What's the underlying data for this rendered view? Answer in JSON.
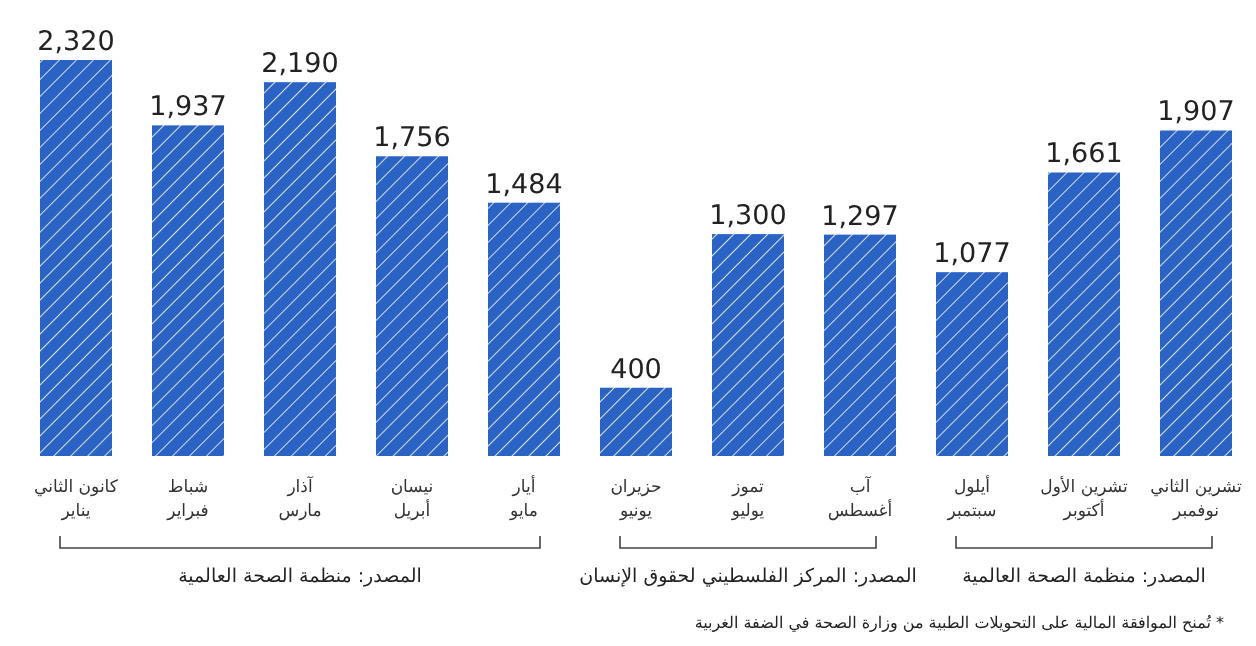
{
  "chart_data": {
    "type": "bar",
    "categories": [
      "كانون الثاني\nيناير",
      "شباط\nفبراير",
      "آذار\nمارس",
      "نيسان\nأبريل",
      "أيار\nمايو",
      "حزيران\nيونيو",
      "تموز\nيوليو",
      "آب\nأغسطس",
      "أيلول\nسبتمبر",
      "تشرين الأول\nأكتوبر",
      "تشرين الثاني\nنوفمبر"
    ],
    "values": [
      2320,
      1937,
      2190,
      1756,
      1484,
      400,
      1300,
      1297,
      1077,
      1661,
      1907
    ],
    "value_labels": [
      "2,320",
      "1,937",
      "2,190",
      "1,756",
      "1,484",
      "400",
      "1,300",
      "1,297",
      "1,077",
      "1,661",
      "1,907"
    ],
    "color": "#2a63c3",
    "annotations": [
      "المصدر: منظمة الصحة العالمية",
      "المصدر: المركز الفلسطيني لحقوق الإنسان",
      "المصدر: منظمة الصحة العالمية",
      "* تُمنح الموافقة المالية على التحويلات الطبية من وزارة الصحة في الضفة الغربية"
    ]
  }
}
